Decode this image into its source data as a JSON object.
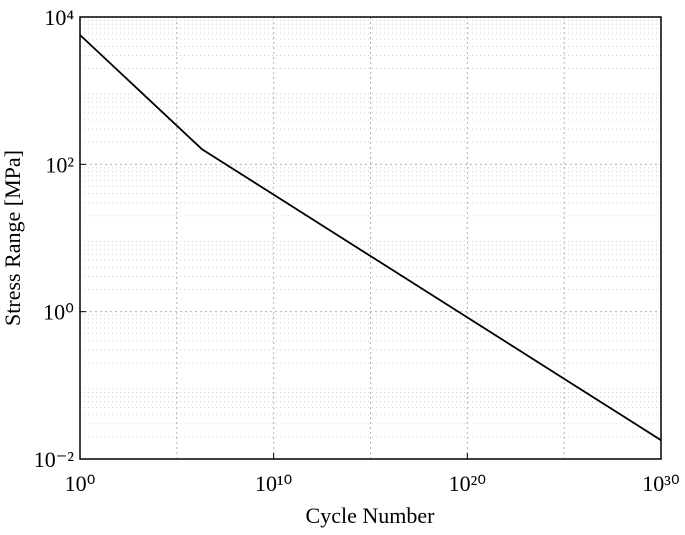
{
  "chart_data": {
    "type": "line",
    "xlabel": "Cycle Number",
    "ylabel": "Stress Range [MPa]",
    "x": [
      1,
      2000000,
      1e+30
    ],
    "series": [
      {
        "color": "#000000",
        "values": [
          5700,
          160,
          0.018
        ]
      }
    ],
    "xscale": "log",
    "yscale": "log",
    "xlim": [
      1,
      1e+30
    ],
    "ylim": [
      0.01,
      10000
    ],
    "xticks": [
      {
        "value": 1,
        "label": "10⁰"
      },
      {
        "value": 10000000000.0,
        "label": "10¹⁰"
      },
      {
        "value": 1e+20,
        "label": "10²⁰"
      },
      {
        "value": 1e+30,
        "label": "10³⁰"
      }
    ],
    "yticks": [
      {
        "value": 0.01,
        "label": "10⁻²"
      },
      {
        "value": 1,
        "label": "10⁰"
      },
      {
        "value": 100,
        "label": "10²"
      },
      {
        "value": 10000,
        "label": "10⁴"
      }
    ],
    "xminorticks": [
      100000,
      1000000000000000.0,
      1e+25
    ],
    "yminorticks": [
      0.02,
      0.03,
      0.04,
      0.05,
      0.06,
      0.07,
      0.08,
      0.09,
      0.2,
      0.3,
      0.4,
      0.5,
      0.6,
      0.7,
      0.8,
      0.9,
      2,
      3,
      4,
      5,
      6,
      7,
      8,
      9,
      20,
      30,
      40,
      50,
      60,
      70,
      80,
      90,
      200,
      300,
      400,
      500,
      600,
      700,
      800,
      900,
      2000,
      3000,
      4000,
      5000,
      6000,
      7000,
      8000,
      9000
    ],
    "grid": true
  }
}
